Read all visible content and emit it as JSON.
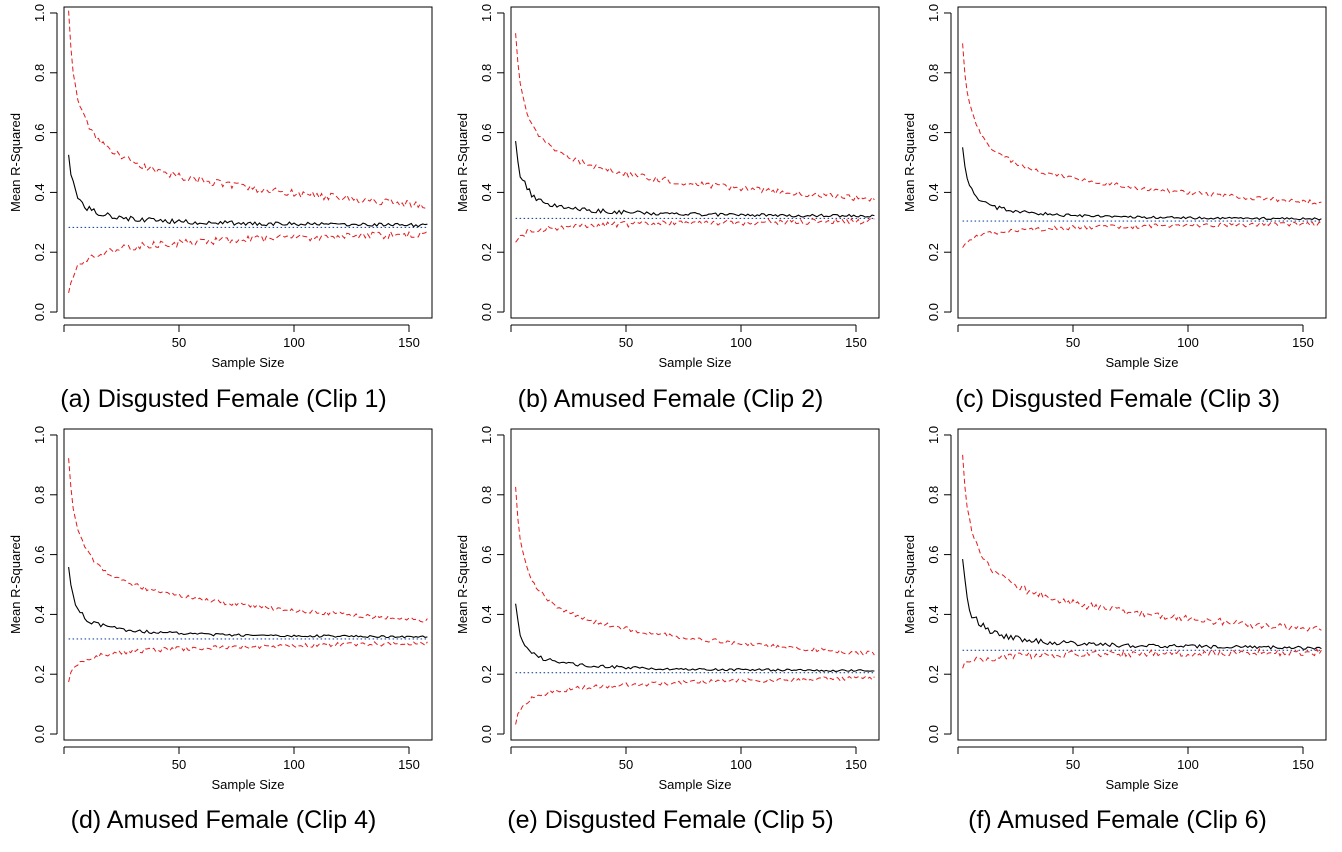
{
  "figure": {
    "panels": [
      {
        "caption": "(a) Disgusted Female (Clip 1)"
      },
      {
        "caption": "(b) Amused Female (Clip 2)"
      },
      {
        "caption": "(c) Disgusted Female (Clip 3)"
      },
      {
        "caption": "(d) Amused Female (Clip 4)"
      },
      {
        "caption": "(e) Disgusted Female (Clip 5)"
      },
      {
        "caption": "(f) Amused Female (Clip 6)"
      }
    ]
  },
  "colors": {
    "mean_line": "#000000",
    "bound_lines": "#e41a1c",
    "reference_line": "#1f4e9a",
    "axis": "#000000"
  },
  "chart_data": [
    {
      "type": "line",
      "xlabel": "Sample Size",
      "ylabel": "Mean R-Squared",
      "xlim": [
        0,
        160
      ],
      "ylim": [
        -0.02,
        1.02
      ],
      "xticks": [
        "50",
        "100",
        "150"
      ],
      "yticks": [
        "0.0",
        "0.2",
        "0.4",
        "0.6",
        "0.8",
        "1.0"
      ],
      "x_start": 2,
      "x_end": 158,
      "reference": 0.283,
      "mean_start": 0.54,
      "upper_start": 1.0,
      "lower_start": 0.065,
      "noise": 0.01
    },
    {
      "type": "line",
      "xlabel": "Sample Size",
      "ylabel": "Mean R-Squared",
      "xlim": [
        0,
        160
      ],
      "ylim": [
        -0.02,
        1.02
      ],
      "xticks": [
        "50",
        "100",
        "150"
      ],
      "yticks": [
        "0.0",
        "0.2",
        "0.4",
        "0.6",
        "0.8",
        "1.0"
      ],
      "x_start": 2,
      "x_end": 158,
      "reference": 0.313,
      "mean_start": 0.58,
      "upper_start": 0.94,
      "lower_start": 0.23,
      "noise": 0.008
    },
    {
      "type": "line",
      "xlabel": "Sample Size",
      "ylabel": "Mean R-Squared",
      "xlim": [
        0,
        160
      ],
      "ylim": [
        -0.02,
        1.02
      ],
      "xticks": [
        "50",
        "100",
        "150"
      ],
      "yticks": [
        "0.0",
        "0.2",
        "0.4",
        "0.6",
        "0.8",
        "1.0"
      ],
      "x_start": 2,
      "x_end": 158,
      "reference": 0.304,
      "mean_start": 0.555,
      "upper_start": 0.9,
      "lower_start": 0.21,
      "noise": 0.006
    },
    {
      "type": "line",
      "xlabel": "Sample Size",
      "ylabel": "Mean R-Squared",
      "xlim": [
        0,
        160
      ],
      "ylim": [
        -0.02,
        1.02
      ],
      "xticks": [
        "50",
        "100",
        "150"
      ],
      "yticks": [
        "0.0",
        "0.2",
        "0.4",
        "0.6",
        "0.8",
        "1.0"
      ],
      "x_start": 2,
      "x_end": 158,
      "reference": 0.318,
      "mean_start": 0.56,
      "upper_start": 0.92,
      "lower_start": 0.18,
      "noise": 0.006
    },
    {
      "type": "line",
      "xlabel": "Sample Size",
      "ylabel": "Mean R-Squared",
      "xlim": [
        0,
        160
      ],
      "ylim": [
        -0.02,
        1.02
      ],
      "xticks": [
        "50",
        "100",
        "150"
      ],
      "yticks": [
        "0.0",
        "0.2",
        "0.4",
        "0.6",
        "0.8",
        "1.0"
      ],
      "x_start": 2,
      "x_end": 158,
      "reference": 0.205,
      "mean_start": 0.435,
      "upper_start": 0.82,
      "lower_start": 0.035,
      "noise": 0.006
    },
    {
      "type": "line",
      "xlabel": "Sample Size",
      "ylabel": "Mean R-Squared",
      "xlim": [
        0,
        160
      ],
      "ylim": [
        -0.02,
        1.02
      ],
      "xticks": [
        "50",
        "100",
        "150"
      ],
      "yticks": [
        "0.0",
        "0.2",
        "0.4",
        "0.6",
        "0.8",
        "1.0"
      ],
      "x_start": 2,
      "x_end": 158,
      "reference": 0.28,
      "mean_start": 0.58,
      "upper_start": 0.94,
      "lower_start": 0.22,
      "noise": 0.01
    }
  ]
}
